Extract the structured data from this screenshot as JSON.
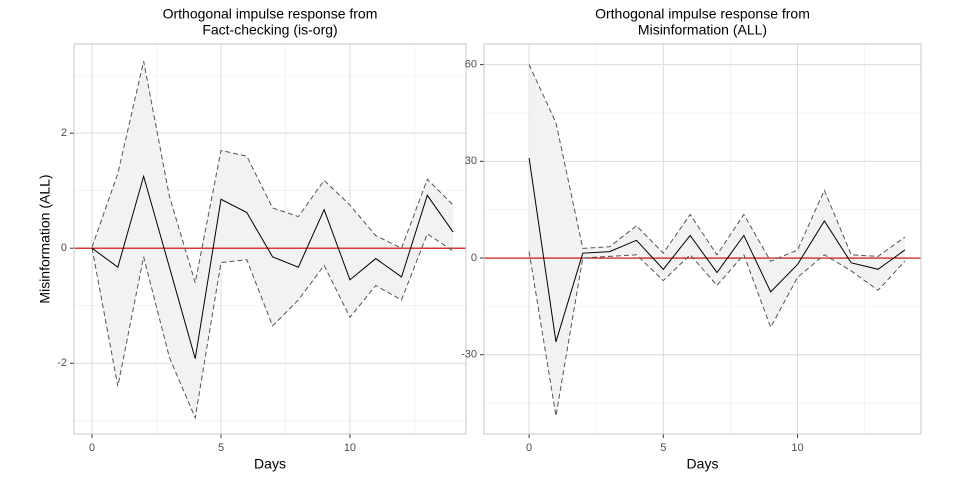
{
  "chart_data": [
    {
      "type": "line",
      "title": [
        "Orthogonal impulse response from",
        "Fact-checking  (is-org)"
      ],
      "xlabel": "Days",
      "ylabel": "Misinformation (ALL)",
      "x": [
        0,
        1,
        2,
        3,
        4,
        5,
        6,
        7,
        8,
        9,
        10,
        11,
        12,
        13,
        14
      ],
      "values": [
        0,
        -0.33,
        1.25,
        -0.33,
        -1.92,
        0.85,
        0.62,
        -0.15,
        -0.33,
        0.67,
        -0.55,
        -0.18,
        -0.5,
        0.92,
        0.28
      ],
      "upper": [
        0.02,
        1.3,
        3.25,
        0.9,
        -0.6,
        1.7,
        1.6,
        0.7,
        0.55,
        1.18,
        0.75,
        0.22,
        0.0,
        1.2,
        0.75
      ],
      "lower": [
        0,
        -2.4,
        -0.15,
        -1.9,
        -2.95,
        -0.25,
        -0.2,
        -1.35,
        -0.9,
        -0.3,
        -1.2,
        -0.65,
        -0.9,
        0.25,
        -0.05
      ],
      "color": "#000000",
      "ci_color": "#555555",
      "ci_fill": "#f2f2f2",
      "reference_line": {
        "value": 0,
        "color": "#cc0000"
      },
      "xlim": [
        -0.7,
        14.5
      ],
      "ylim": [
        -3.23,
        3.55
      ],
      "xticks": [
        0,
        5,
        10
      ],
      "yticks": [
        -2,
        0,
        2
      ],
      "grid": true
    },
    {
      "type": "line",
      "title": [
        "Orthogonal impulse response from",
        "Misinformation (ALL)"
      ],
      "xlabel": "Days",
      "x": [
        0,
        1,
        2,
        3,
        4,
        5,
        6,
        7,
        8,
        9,
        10,
        11,
        12,
        13,
        14
      ],
      "values": [
        31,
        -26,
        1.5,
        2,
        5.5,
        -3.5,
        7,
        -4.5,
        7,
        -10.5,
        -2,
        11.5,
        -1.5,
        -3.5,
        2.5
      ],
      "upper": [
        60,
        42,
        3,
        3.5,
        10,
        1.5,
        13.5,
        1,
        13.5,
        -1,
        2.5,
        21,
        1,
        0.5,
        6.5
      ],
      "lower": [
        2,
        -49,
        0,
        0.5,
        1,
        -7,
        1,
        -8.5,
        1,
        -21.5,
        -6,
        1,
        -4,
        -10,
        -1
      ],
      "color": "#000000",
      "ci_color": "#555555",
      "ci_fill": "#f2f2f2",
      "reference_line": {
        "value": 0,
        "color": "#cc0000"
      },
      "xlim": [
        -1.68,
        14.6
      ],
      "ylim": [
        -54.6,
        66.4
      ],
      "xticks": [
        0,
        5,
        10
      ],
      "yticks": [
        -30,
        0,
        30,
        60
      ],
      "grid": true
    }
  ]
}
